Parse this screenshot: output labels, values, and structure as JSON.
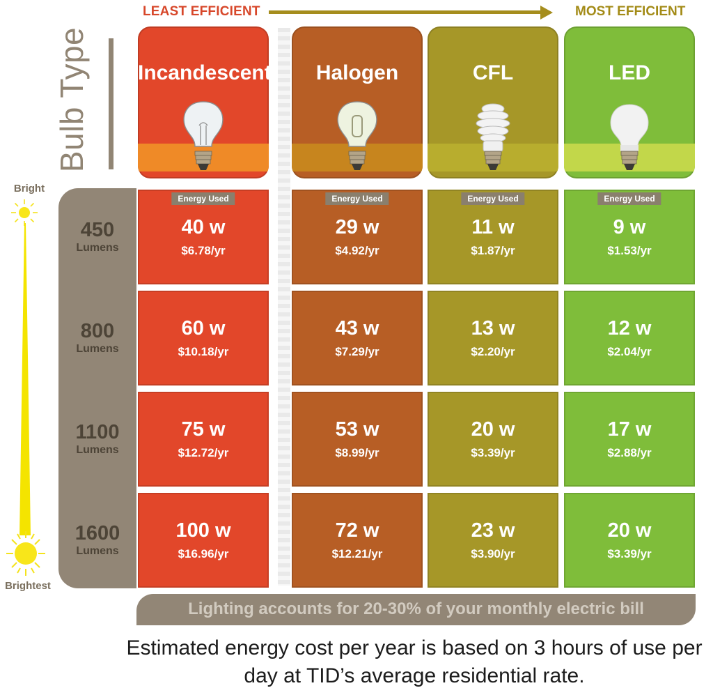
{
  "header": {
    "least_efficient": "LEAST EFFICIENT",
    "most_efficient": "MOST EFFICIENT",
    "bulb_type_label": "Bulb Type"
  },
  "bulbs": [
    {
      "name": "Incandescent",
      "color": "#e2472a",
      "stripe": "#ef8a27",
      "icon": "incandescent-bulb-icon"
    },
    {
      "name": "Halogen",
      "color": "#b75e25",
      "stripe": "#c7851e",
      "icon": "halogen-bulb-icon"
    },
    {
      "name": "CFL",
      "color": "#a69728",
      "stripe": "#b8ad2e",
      "icon": "cfl-bulb-icon"
    },
    {
      "name": "LED",
      "color": "#7fbd3a",
      "stripe": "#c2d74a",
      "icon": "led-bulb-icon"
    }
  ],
  "energy_used_label": "Energy Used",
  "brightness": {
    "top": "Bright",
    "bottom": "Brightest"
  },
  "rows": [
    {
      "lumens": "450",
      "unit": "Lumens",
      "cells": [
        {
          "watts": "40 w",
          "cost": "$6.78/yr"
        },
        {
          "watts": "29 w",
          "cost": "$4.92/yr"
        },
        {
          "watts": "11 w",
          "cost": "$1.87/yr"
        },
        {
          "watts": "9 w",
          "cost": "$1.53/yr"
        }
      ]
    },
    {
      "lumens": "800",
      "unit": "Lumens",
      "cells": [
        {
          "watts": "60 w",
          "cost": "$10.18/yr"
        },
        {
          "watts": "43 w",
          "cost": "$7.29/yr"
        },
        {
          "watts": "13 w",
          "cost": "$2.20/yr"
        },
        {
          "watts": "12 w",
          "cost": "$2.04/yr"
        }
      ]
    },
    {
      "lumens": "1100",
      "unit": "Lumens",
      "cells": [
        {
          "watts": "75 w",
          "cost": "$12.72/yr"
        },
        {
          "watts": "53 w",
          "cost": "$8.99/yr"
        },
        {
          "watts": "20 w",
          "cost": "$3.39/yr"
        },
        {
          "watts": "17 w",
          "cost": "$2.88/yr"
        }
      ]
    },
    {
      "lumens": "1600",
      "unit": "Lumens",
      "cells": [
        {
          "watts": "100 w",
          "cost": "$16.96/yr"
        },
        {
          "watts": "72 w",
          "cost": "$12.21/yr"
        },
        {
          "watts": "23 w",
          "cost": "$3.90/yr"
        },
        {
          "watts": "20 w",
          "cost": "$3.39/yr"
        }
      ]
    }
  ],
  "footer": {
    "bill_note": "Lighting accounts for 20-30% of your monthly electric bill",
    "estimate_note": "Estimated energy cost per year is based on 3 hours of use per day at TID’s average residential rate."
  }
}
